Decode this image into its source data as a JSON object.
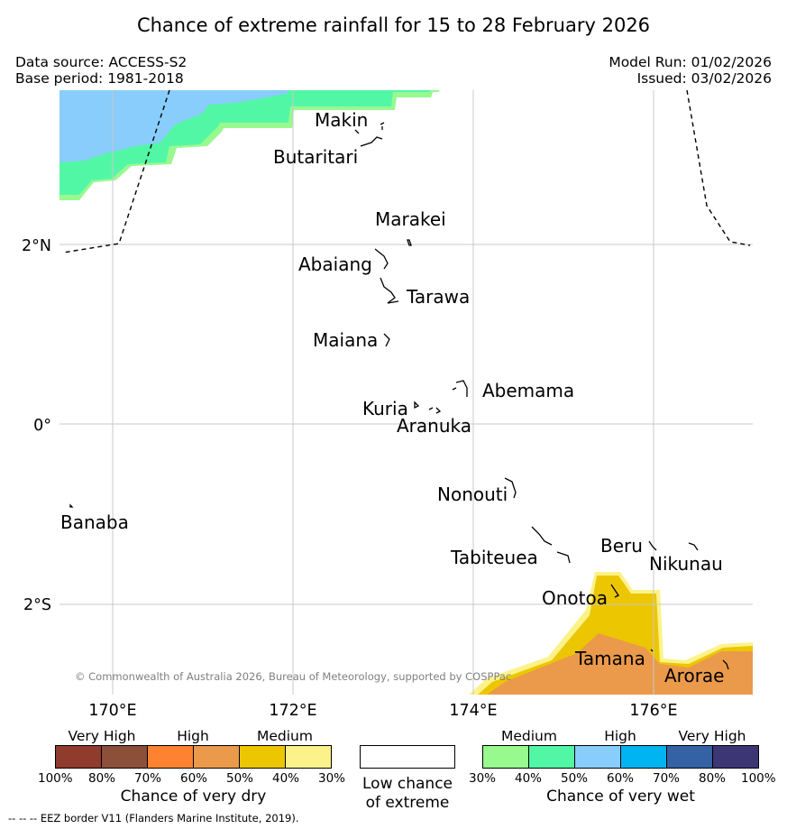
{
  "title": "Chance of extreme rainfall for 15 to 28 February 2026",
  "meta": {
    "data_source": "Data source: ACCESS-S2",
    "base_period": "Base period: 1981-2018",
    "model_run": "Model Run: 01/02/2026",
    "issued": "Issued: 03/02/2026"
  },
  "map": {
    "lat_labels": [
      "2°N",
      "0°",
      "2°S"
    ],
    "lon_labels": [
      "170°E",
      "172°E",
      "174°E",
      "176°E"
    ],
    "islands": [
      "Makin",
      "Butaritari",
      "Marakei",
      "Abaiang",
      "Tarawa",
      "Maiana",
      "Abemama",
      "Kuria",
      "Aranuka",
      "Nonouti",
      "Banaba",
      "Tabiteuea",
      "Beru",
      "Nikunau",
      "Onotoa",
      "Tamana",
      "Arorae"
    ],
    "copyright": "© Commonwealth of Australia 2026, Bureau of Meteorology, supported by COSPPac"
  },
  "legend_dry": {
    "categories": [
      "Very High",
      "High",
      "Medium"
    ],
    "colors": [
      "#8f3b2e",
      "#8c4f3a",
      "#fd8330",
      "#ea9a4a",
      "#ecc600",
      "#fcf28a"
    ],
    "ticks": [
      "100%",
      "80%",
      "70%",
      "60%",
      "50%",
      "40%",
      "30%"
    ],
    "title": "Chance of very dry"
  },
  "legend_low": {
    "line1": "Low chance",
    "line2": "of extreme"
  },
  "legend_wet": {
    "categories": [
      "Medium",
      "High",
      "Very High"
    ],
    "colors": [
      "#98f98f",
      "#52f7a6",
      "#88cdfb",
      "#00b4f2",
      "#3561a5",
      "#3d3674"
    ],
    "ticks": [
      "30%",
      "40%",
      "50%",
      "60%",
      "70%",
      "80%",
      "100%"
    ],
    "title": "Chance of very wet"
  },
  "footer": "--  --  -- EEZ border V11 (Flanders Marine Institute, 2019)."
}
